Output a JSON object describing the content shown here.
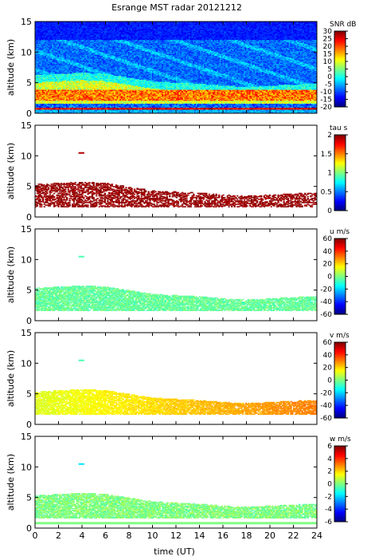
{
  "title": "Esrange MST radar 20121212",
  "xlabel": "time (UT)",
  "colors": {
    "background": "#ffffff",
    "frame": "#000000",
    "jet": [
      "#00007f",
      "#0000ff",
      "#007fff",
      "#00ffff",
      "#7fff7f",
      "#ffff00",
      "#ff7f00",
      "#ff0000",
      "#7f0000"
    ]
  },
  "chart_data": [
    {
      "type": "heatmap",
      "quantity": "SNR",
      "ylabel": "altitude (km)",
      "colorbar_label": "SNR dB",
      "xlim": [
        0,
        24
      ],
      "ylim": [
        0,
        15
      ],
      "clim": [
        -20,
        30
      ],
      "xticks": [
        "0",
        "2",
        "4",
        "6",
        "8",
        "10",
        "12",
        "14",
        "16",
        "18",
        "20",
        "22",
        "24"
      ],
      "yticks": [
        "0",
        "5",
        "10",
        "15"
      ],
      "cticks": [
        "30",
        "25",
        "20",
        "15",
        "10",
        "5",
        "0",
        "-5",
        "-10",
        "-15",
        "-20"
      ],
      "features": {
        "upper_layer_boundary_km": [
          [
            0,
            5.0
          ],
          [
            4,
            5.4
          ],
          [
            6,
            5.2
          ],
          [
            8,
            4.6
          ],
          [
            10,
            4.0
          ],
          [
            12,
            3.8
          ],
          [
            14,
            3.6
          ],
          [
            16,
            3.3
          ],
          [
            18,
            3.1
          ],
          [
            20,
            3.3
          ],
          [
            22,
            3.5
          ],
          [
            24,
            3.6
          ]
        ],
        "strong_echo_band_km": [
          2.0,
          3.8
        ],
        "ground_clutter_km": [
          0.6,
          1.4
        ]
      }
    },
    {
      "type": "heatmap",
      "quantity": "tau",
      "ylabel": "altitude (km)",
      "colorbar_label": "tau s",
      "xlim": [
        0,
        24
      ],
      "ylim": [
        0,
        15
      ],
      "clim": [
        0,
        2
      ],
      "xticks": [
        "0",
        "2",
        "4",
        "6",
        "8",
        "10",
        "12",
        "14",
        "16",
        "18",
        "20",
        "22",
        "24"
      ],
      "yticks": [
        "0",
        "5",
        "10",
        "15"
      ],
      "cticks": [
        "2",
        "1.5",
        "1",
        "0.5",
        "0"
      ]
    },
    {
      "type": "heatmap",
      "quantity": "u",
      "ylabel": "altitude (km)",
      "colorbar_label": "u m/s",
      "xlim": [
        0,
        24
      ],
      "ylim": [
        0,
        15
      ],
      "clim": [
        -60,
        60
      ],
      "xticks": [
        "0",
        "2",
        "4",
        "6",
        "8",
        "10",
        "12",
        "14",
        "16",
        "18",
        "20",
        "22",
        "24"
      ],
      "yticks": [
        "0",
        "5",
        "10",
        "15"
      ],
      "cticks": [
        "60",
        "40",
        "20",
        "0",
        "-20",
        "-40",
        "-60"
      ]
    },
    {
      "type": "heatmap",
      "quantity": "v",
      "ylabel": "altitude (km)",
      "colorbar_label": "v m/s",
      "xlim": [
        0,
        24
      ],
      "ylim": [
        0,
        15
      ],
      "clim": [
        -60,
        60
      ],
      "xticks": [
        "0",
        "2",
        "4",
        "6",
        "8",
        "10",
        "12",
        "14",
        "16",
        "18",
        "20",
        "22",
        "24"
      ],
      "yticks": [
        "0",
        "5",
        "10",
        "15"
      ],
      "cticks": [
        "60",
        "40",
        "20",
        "0",
        "-20",
        "-40",
        "-60"
      ]
    },
    {
      "type": "heatmap",
      "quantity": "w",
      "ylabel": "altitude (km)",
      "colorbar_label": "w m/s",
      "xlim": [
        0,
        24
      ],
      "ylim": [
        0,
        15
      ],
      "clim": [
        -6,
        6
      ],
      "xticks": [
        "0",
        "2",
        "4",
        "6",
        "8",
        "10",
        "12",
        "14",
        "16",
        "18",
        "20",
        "22",
        "24"
      ],
      "yticks": [
        "0",
        "5",
        "10",
        "15"
      ],
      "cticks": [
        "6",
        "4",
        "2",
        "0",
        "-2",
        "-4",
        "-6"
      ]
    }
  ]
}
